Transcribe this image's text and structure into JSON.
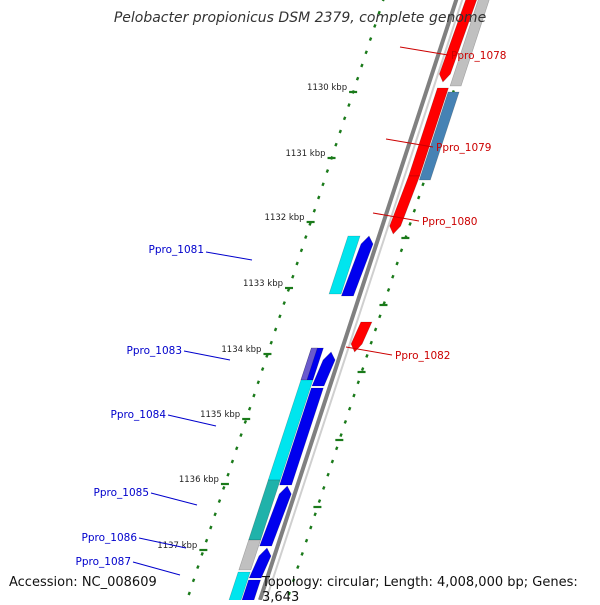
{
  "title": "Pelobacter propionicus DSM 2379, complete genome",
  "footer": {
    "accession": "Accession: NC_008609",
    "summary": "Topology: circular; Length: 4,008,000 bp; Genes: 3,643"
  },
  "colors": {
    "backbone": "#808080",
    "tick": "#1a7a1a",
    "forward_label": "#cc0000",
    "reverse_label": "#0000cc",
    "cds_red": "#ff0000",
    "cds_gray": "#c0c0c0",
    "cds_steel": "#4682b4",
    "cds_blue": "#0000ee",
    "cds_cyan": "#00e5ee",
    "cds_teal": "#20b2aa",
    "cds_slate": "#6a5acd"
  },
  "scale_ticks": [
    "1130 kbp",
    "1131 kbp",
    "1132 kbp",
    "1133 kbp",
    "1134 kbp",
    "1135 kbp",
    "1136 kbp",
    "1137 kbp"
  ],
  "gene_labels_forward": [
    "Ppro_1078",
    "Ppro_1079",
    "Ppro_1080",
    "Ppro_1082"
  ],
  "gene_labels_reverse": [
    "Ppro_1081",
    "Ppro_1083",
    "Ppro_1084",
    "Ppro_1085",
    "Ppro_1086",
    "Ppro_1087"
  ]
}
